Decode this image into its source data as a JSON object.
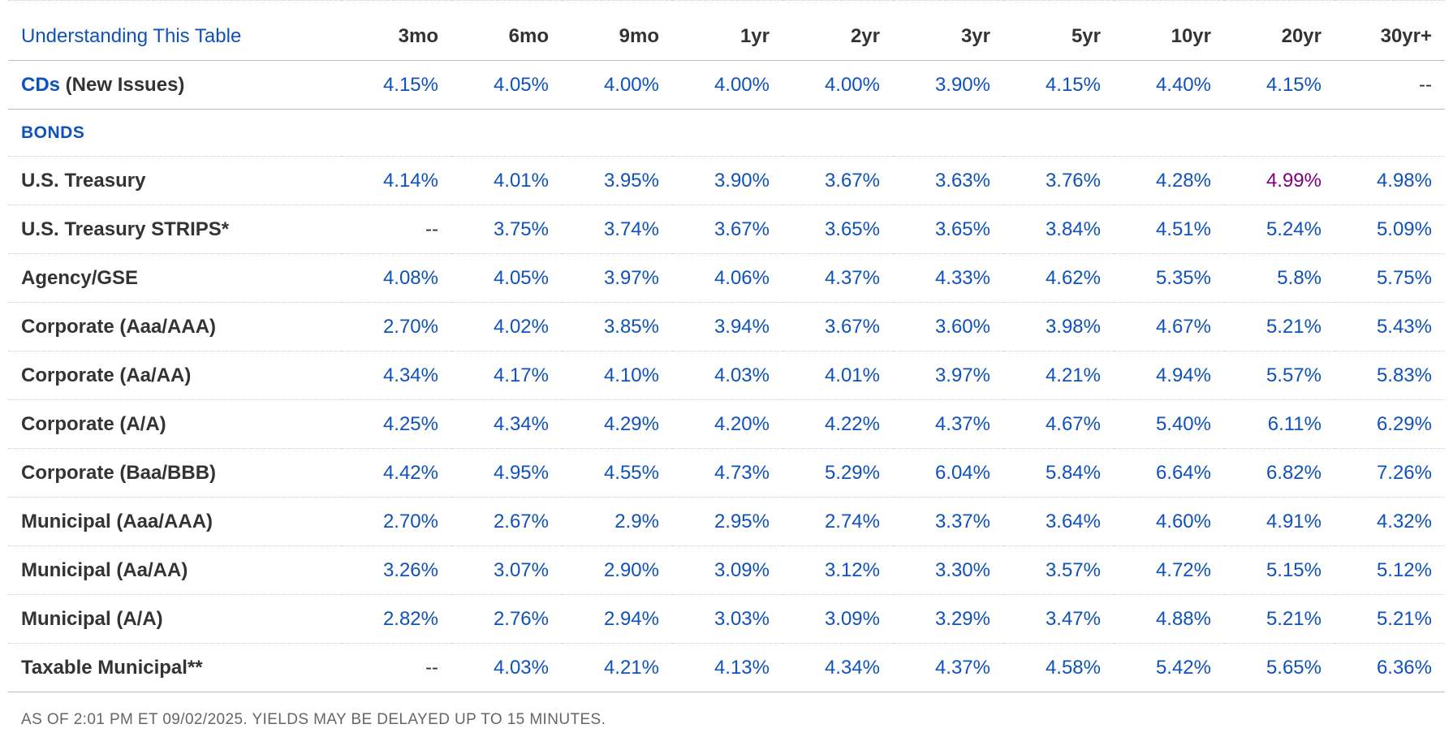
{
  "table": {
    "header_link": "Understanding This Table",
    "columns": [
      "3mo",
      "6mo",
      "9mo",
      "1yr",
      "2yr",
      "3yr",
      "5yr",
      "10yr",
      "20yr",
      "30yr+"
    ],
    "cds": {
      "link": "CDs",
      "label_suffix": " (New Issues)",
      "values": [
        "4.15%",
        "4.05%",
        "4.00%",
        "4.00%",
        "4.00%",
        "3.90%",
        "4.15%",
        "4.40%",
        "4.15%",
        "--"
      ]
    },
    "section_label": "BONDS",
    "rows": [
      {
        "label": "U.S. Treasury",
        "values": [
          "4.14%",
          "4.01%",
          "3.95%",
          "3.90%",
          "3.67%",
          "3.63%",
          "3.76%",
          "4.28%",
          "4.99%",
          "4.98%"
        ]
      },
      {
        "label": "U.S. Treasury STRIPS*",
        "values": [
          "--",
          "3.75%",
          "3.74%",
          "3.67%",
          "3.65%",
          "3.65%",
          "3.84%",
          "4.51%",
          "5.24%",
          "5.09%"
        ]
      },
      {
        "label": "Agency/GSE",
        "values": [
          "4.08%",
          "4.05%",
          "3.97%",
          "4.06%",
          "4.37%",
          "4.33%",
          "4.62%",
          "5.35%",
          "5.8%",
          "5.75%"
        ]
      },
      {
        "label": "Corporate (Aaa/AAA)",
        "values": [
          "2.70%",
          "4.02%",
          "3.85%",
          "3.94%",
          "3.67%",
          "3.60%",
          "3.98%",
          "4.67%",
          "5.21%",
          "5.43%"
        ]
      },
      {
        "label": "Corporate (Aa/AA)",
        "values": [
          "4.34%",
          "4.17%",
          "4.10%",
          "4.03%",
          "4.01%",
          "3.97%",
          "4.21%",
          "4.94%",
          "5.57%",
          "5.83%"
        ]
      },
      {
        "label": "Corporate (A/A)",
        "values": [
          "4.25%",
          "4.34%",
          "4.29%",
          "4.20%",
          "4.22%",
          "4.37%",
          "4.67%",
          "5.40%",
          "6.11%",
          "6.29%"
        ]
      },
      {
        "label": "Corporate (Baa/BBB)",
        "values": [
          "4.42%",
          "4.95%",
          "4.55%",
          "4.73%",
          "5.29%",
          "6.04%",
          "5.84%",
          "6.64%",
          "6.82%",
          "7.26%"
        ]
      },
      {
        "label": "Municipal (Aaa/AAA)",
        "values": [
          "2.70%",
          "2.67%",
          "2.9%",
          "2.95%",
          "2.74%",
          "3.37%",
          "3.64%",
          "4.60%",
          "4.91%",
          "4.32%"
        ]
      },
      {
        "label": "Municipal (Aa/AA)",
        "values": [
          "3.26%",
          "3.07%",
          "2.90%",
          "3.09%",
          "3.12%",
          "3.30%",
          "3.57%",
          "4.72%",
          "5.15%",
          "5.12%"
        ]
      },
      {
        "label": "Municipal (A/A)",
        "values": [
          "2.82%",
          "2.76%",
          "2.94%",
          "3.03%",
          "3.09%",
          "3.29%",
          "3.47%",
          "4.88%",
          "5.21%",
          "5.21%"
        ]
      },
      {
        "label": "Taxable Municipal**",
        "values": [
          "--",
          "4.03%",
          "4.21%",
          "4.13%",
          "4.34%",
          "4.37%",
          "4.58%",
          "5.42%",
          "5.65%",
          "6.36%"
        ]
      }
    ],
    "highlight": {
      "row": 0,
      "col": 8,
      "color": "#800080"
    },
    "colors": {
      "link": "#0f52ba",
      "text": "#333333",
      "visited": "#800080"
    }
  },
  "footnote": "AS OF 2:01 PM ET 09/02/2025. YIELDS MAY BE DELAYED UP TO 15 MINUTES."
}
